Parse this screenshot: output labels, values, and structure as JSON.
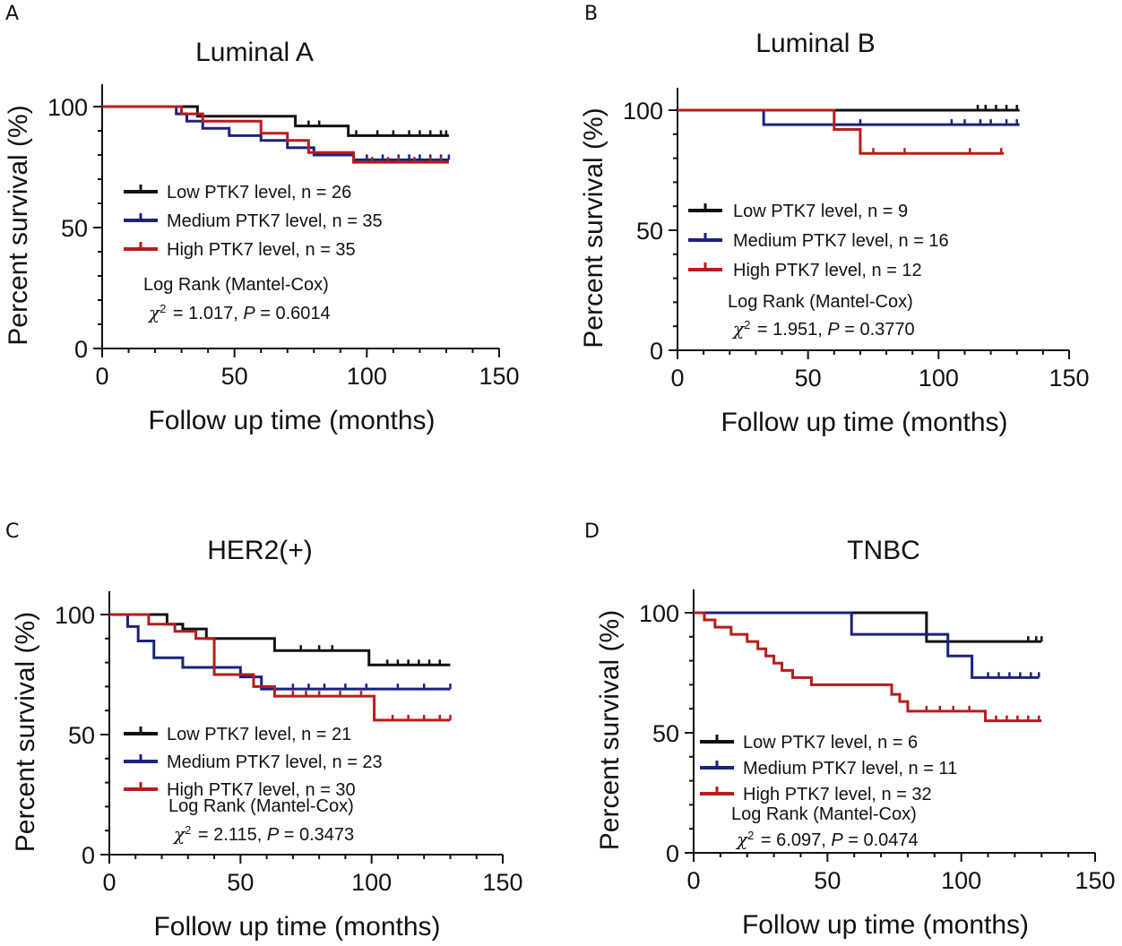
{
  "figure": {
    "common": {
      "xlabel": "Follow up time (months)",
      "ylabel": "Percent survival (%)",
      "x_ticks": [
        "0",
        "50",
        "100",
        "150"
      ],
      "y_ticks": [
        "0",
        "50",
        "100"
      ],
      "log_rank_label": "Log Rank (Mantel-Cox)",
      "chi_symbol": "χ",
      "chi_exponent": "2",
      "p_symbol": "P"
    },
    "colors": {
      "low": "#111111",
      "medium": "#1a237e",
      "high": "#b71c1c"
    }
  },
  "chart_data": [
    {
      "panel": "A",
      "type": "line",
      "title": "Luminal A",
      "xlabel": "Follow up time (months)",
      "ylabel": "Percent survival (%)",
      "xlim": [
        0,
        150
      ],
      "ylim": [
        0,
        100
      ],
      "legend": [
        "Low PTK7 level, n = 26",
        "Medium PTK7 level, n = 35",
        "High PTK7 level, n = 35"
      ],
      "stat": {
        "chi2": "= 1.017,",
        "p": "= 0.6014"
      },
      "series": [
        {
          "name": "Low PTK7 level, n = 26",
          "color": "#111111",
          "x": [
            0,
            36,
            73,
            93,
            131
          ],
          "y": [
            100,
            96,
            92,
            88,
            88
          ],
          "censor_x": [
            78,
            82,
            96,
            104,
            110,
            116,
            120,
            124,
            128,
            130
          ]
        },
        {
          "name": "Medium PTK7 level, n = 35",
          "color": "#1a237e",
          "x": [
            0,
            28,
            32,
            38,
            48,
            60,
            70,
            80,
            95,
            131
          ],
          "y": [
            100,
            97,
            94,
            91,
            88,
            86,
            83,
            80,
            78,
            78
          ],
          "censor_x": [
            100,
            106,
            112,
            116,
            120,
            124,
            128,
            131
          ]
        },
        {
          "name": "High PTK7 level, n = 35",
          "color": "#b71c1c",
          "x": [
            0,
            30,
            38,
            60,
            70,
            78,
            95,
            131
          ],
          "y": [
            100,
            97,
            94,
            89,
            86,
            81,
            77,
            77
          ],
          "censor_x": [
            102,
            108,
            112,
            118,
            124,
            128
          ]
        }
      ]
    },
    {
      "panel": "B",
      "type": "line",
      "title": "Luminal B",
      "xlabel": "Follow up time (months)",
      "ylabel": "Percent survival (%)",
      "xlim": [
        0,
        150
      ],
      "ylim": [
        0,
        100
      ],
      "legend": [
        "Low PTK7 level, n = 9",
        "Medium PTK7 level, n = 16",
        "High PTK7 level, n = 12"
      ],
      "stat": {
        "chi2": "= 1.951,",
        "p": "= 0.3770"
      },
      "series": [
        {
          "name": "Low PTK7 level, n = 9",
          "color": "#111111",
          "x": [
            0,
            131
          ],
          "y": [
            100,
            100
          ],
          "censor_x": [
            115,
            118,
            122,
            126,
            130
          ]
        },
        {
          "name": "Medium PTK7 level, n = 16",
          "color": "#1a237e",
          "x": [
            0,
            33,
            131
          ],
          "y": [
            100,
            94,
            94
          ],
          "censor_x": [
            70,
            105,
            110,
            116,
            120,
            126,
            130
          ]
        },
        {
          "name": "High PTK7 level, n = 12",
          "color": "#b71c1c",
          "x": [
            0,
            60,
            70,
            125
          ],
          "y": [
            100,
            92,
            82,
            82
          ],
          "censor_x": [
            75,
            87,
            112,
            124
          ]
        }
      ]
    },
    {
      "panel": "C",
      "type": "line",
      "title": "HER2(+)",
      "xlabel": "Follow up time (months)",
      "ylabel": "Percent survival (%)",
      "xlim": [
        0,
        150
      ],
      "ylim": [
        0,
        100
      ],
      "legend": [
        "Low PTK7 level, n = 21",
        "Medium PTK7 level, n = 23",
        "High PTK7 level, n = 30"
      ],
      "stat": {
        "chi2": "= 2.115,",
        "p": "= 0.3473"
      },
      "series": [
        {
          "name": "Low PTK7 level, n = 21",
          "color": "#111111",
          "x": [
            0,
            22,
            28,
            37,
            63,
            99,
            130
          ],
          "y": [
            100,
            96,
            94,
            90,
            85,
            79,
            79
          ],
          "censor_x": [
            73,
            80,
            85,
            106,
            110,
            114,
            118,
            122,
            126
          ]
        },
        {
          "name": "Medium PTK7 level, n = 23",
          "color": "#1a237e",
          "x": [
            0,
            7,
            11,
            17,
            28,
            50,
            58,
            130
          ],
          "y": [
            100,
            95,
            89,
            82,
            78,
            74,
            69,
            69
          ],
          "censor_x": [
            70,
            76,
            82,
            90,
            98,
            110,
            120,
            130
          ]
        },
        {
          "name": "High PTK7 level, n = 30",
          "color": "#b71c1c",
          "x": [
            0,
            15,
            25,
            33,
            40,
            55,
            63,
            101,
            130
          ],
          "y": [
            100,
            96,
            93,
            90,
            75,
            70,
            66,
            56,
            56
          ],
          "censor_x": [
            70,
            75,
            80,
            88,
            96,
            108,
            114,
            120,
            126,
            130
          ]
        }
      ]
    },
    {
      "panel": "D",
      "type": "line",
      "title": "TNBC",
      "xlabel": "Follow up time (months)",
      "ylabel": "Percent survival (%)",
      "xlim": [
        0,
        150
      ],
      "ylim": [
        0,
        100
      ],
      "legend": [
        "Low PTK7 level, n = 6",
        "Medium PTK7 level, n = 11",
        "High PTK7 level, n = 32"
      ],
      "stat": {
        "chi2": "= 6.097,",
        "p": "= 0.0474"
      },
      "series": [
        {
          "name": "Low PTK7 level, n = 6",
          "color": "#111111",
          "x": [
            0,
            87,
            130
          ],
          "y": [
            100,
            88,
            88
          ],
          "censor_x": [
            125,
            128,
            130
          ]
        },
        {
          "name": "Medium PTK7 level, n = 11",
          "color": "#1a237e",
          "x": [
            0,
            59,
            95,
            104,
            129
          ],
          "y": [
            100,
            91,
            82,
            73,
            73
          ],
          "censor_x": [
            110,
            114,
            118,
            122,
            126,
            129
          ]
        },
        {
          "name": "High PTK7 level, n = 32",
          "color": "#b71c1c",
          "x": [
            0,
            4,
            8,
            14,
            20,
            24,
            27,
            30,
            33,
            37,
            44,
            74,
            77,
            80,
            109,
            130
          ],
          "y": [
            100,
            97,
            94,
            91,
            88,
            85,
            82,
            79,
            76,
            73,
            70,
            66,
            63,
            59,
            55,
            55
          ],
          "censor_x": [
            87,
            92,
            97,
            103,
            113,
            117,
            121,
            125,
            129
          ]
        }
      ]
    }
  ]
}
